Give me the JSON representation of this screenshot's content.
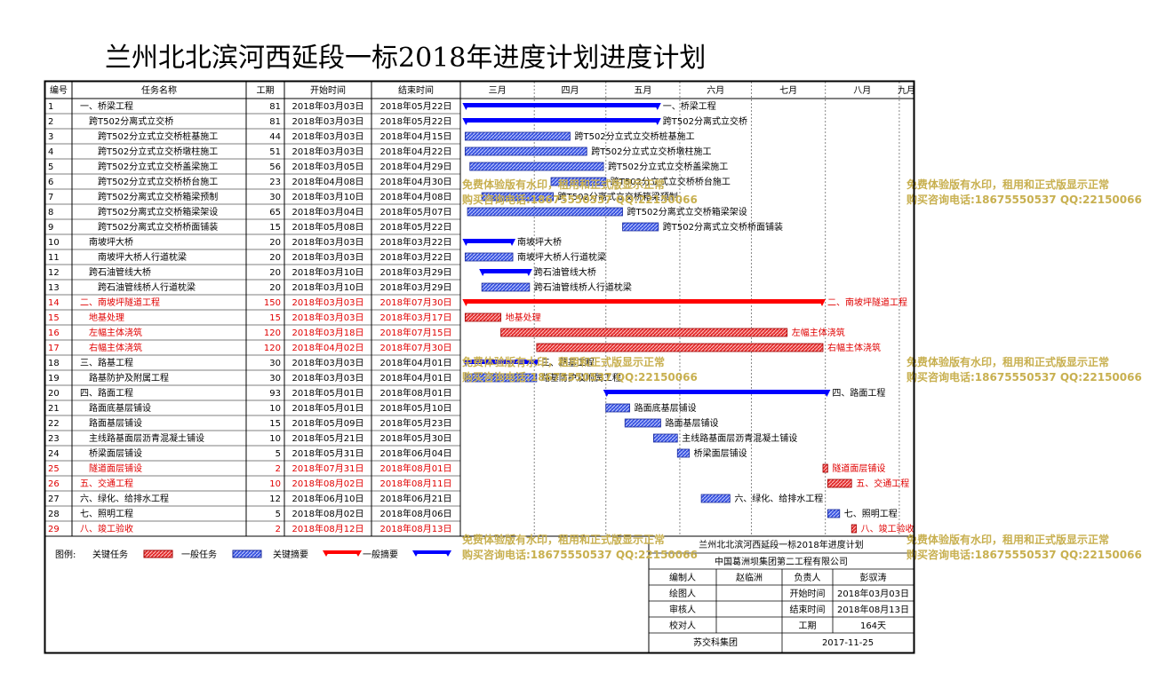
{
  "title": "兰州北北滨河西延段一标2018年进度计划进度计划",
  "header": {
    "id": "编号",
    "name": "任务名称",
    "duration": "工期",
    "start": "开始时间",
    "end": "结束时间",
    "months": [
      "三月",
      "四月",
      "五月",
      "六月",
      "七月",
      "八月",
      "九月"
    ]
  },
  "legend": {
    "label": "图例:",
    "items": [
      "关键任务",
      "一般任务",
      "关键摘要",
      "一般摘要"
    ]
  },
  "info": {
    "project": "兰州北北滨河西延段一标2018年进度计划",
    "company": "中国葛洲坝集团第二工程有限公司",
    "rows": [
      [
        "编制人",
        "赵临洲",
        "负责人",
        "彭驭涛"
      ],
      [
        "绘图人",
        "",
        "开始时间",
        "2018年03月03日"
      ],
      [
        "审核人",
        "",
        "结束时间",
        "2018年08月13日"
      ],
      [
        "校对人",
        "",
        "工期",
        "164天"
      ]
    ],
    "footer_left": "苏交科集团",
    "footer_right": "2017-11-25"
  },
  "watermarks": {
    "line1": "免费体验版有水印，租用和正式版显示正常",
    "line2": "购买咨询电话:18675550537 QQ:22150066"
  },
  "colors": {
    "critical": "#e00000",
    "normal": "#2b3fd6",
    "summary": "#0000ff",
    "critical_summary": "#ff0000"
  },
  "chart_data": {
    "type": "gantt",
    "timeline_start": "2018-03-01",
    "timeline_end": "2018-09-07",
    "tasks": [
      {
        "id": "1",
        "name": "一、桥梁工程",
        "duration": "81",
        "start": "2018年03月03日",
        "end": "2018年05月22日",
        "level": 0,
        "kind": "summary",
        "critical": false,
        "label": "一、桥梁工程"
      },
      {
        "id": "2",
        "name": "跨T502分离式立交桥",
        "duration": "81",
        "start": "2018年03月03日",
        "end": "2018年05月22日",
        "level": 1,
        "kind": "summary",
        "critical": false,
        "label": "跨T502分离式立交桥"
      },
      {
        "id": "3",
        "name": "跨T502分立式立交桥桩基施工",
        "duration": "44",
        "start": "2018年03月03日",
        "end": "2018年04月15日",
        "level": 2,
        "kind": "task",
        "critical": false,
        "label": "跨T502分立式立交桥桩基施工"
      },
      {
        "id": "4",
        "name": "跨T502分立式立交桥墩柱施工",
        "duration": "51",
        "start": "2018年03月03日",
        "end": "2018年04月22日",
        "level": 2,
        "kind": "task",
        "critical": false,
        "label": "跨T502分立式立交桥墩柱施工"
      },
      {
        "id": "5",
        "name": "跨T502分立式立交桥盖梁施工",
        "duration": "56",
        "start": "2018年03月05日",
        "end": "2018年04月29日",
        "level": 2,
        "kind": "task",
        "critical": false,
        "label": "跨T502分立式立交桥盖梁施工"
      },
      {
        "id": "6",
        "name": "跨T502分立式立交桥桥台施工",
        "duration": "23",
        "start": "2018年04月08日",
        "end": "2018年04月30日",
        "level": 2,
        "kind": "task",
        "critical": false,
        "label": "跨T502分立式立交桥桥台施工"
      },
      {
        "id": "7",
        "name": "跨T502分离式立交桥箱梁预制",
        "duration": "30",
        "start": "2018年03月10日",
        "end": "2018年04月08日",
        "level": 2,
        "kind": "task",
        "critical": false,
        "label": "跨T502分离式立交桥箱梁预制"
      },
      {
        "id": "8",
        "name": "跨T502分离式立交桥箱梁架设",
        "duration": "65",
        "start": "2018年03月04日",
        "end": "2018年05月07日",
        "level": 2,
        "kind": "task",
        "critical": false,
        "label": "跨T502分离式立交桥箱梁架设"
      },
      {
        "id": "9",
        "name": "跨T502分离式立交桥桥面铺装",
        "duration": "15",
        "start": "2018年05月08日",
        "end": "2018年05月22日",
        "level": 2,
        "kind": "task",
        "critical": false,
        "label": "跨T502分离式立交桥桥面铺装"
      },
      {
        "id": "10",
        "name": "南坡坪大桥",
        "duration": "20",
        "start": "2018年03月03日",
        "end": "2018年03月22日",
        "level": 1,
        "kind": "summary",
        "critical": false,
        "label": "南坡坪大桥"
      },
      {
        "id": "11",
        "name": "南坡坪大桥人行道枕梁",
        "duration": "20",
        "start": "2018年03月03日",
        "end": "2018年03月22日",
        "level": 2,
        "kind": "task",
        "critical": false,
        "label": "南坡坪大桥人行道枕梁"
      },
      {
        "id": "12",
        "name": "跨石油管线大桥",
        "duration": "20",
        "start": "2018年03月10日",
        "end": "2018年03月29日",
        "level": 1,
        "kind": "summary",
        "critical": false,
        "label": "跨石油管线大桥"
      },
      {
        "id": "13",
        "name": "跨石油管线桥人行道枕梁",
        "duration": "20",
        "start": "2018年03月10日",
        "end": "2018年03月29日",
        "level": 2,
        "kind": "task",
        "critical": false,
        "label": "跨石油管线桥人行道枕梁"
      },
      {
        "id": "14",
        "name": "二、南坡坪隧道工程",
        "duration": "150",
        "start": "2018年03月03日",
        "end": "2018年07月30日",
        "level": 0,
        "kind": "summary",
        "critical": true,
        "label": "二、南坡坪隧道工程"
      },
      {
        "id": "15",
        "name": "地基处理",
        "duration": "15",
        "start": "2018年03月03日",
        "end": "2018年03月17日",
        "level": 1,
        "kind": "task",
        "critical": true,
        "label": "地基处理"
      },
      {
        "id": "16",
        "name": "左幅主体浇筑",
        "duration": "120",
        "start": "2018年03月18日",
        "end": "2018年07月15日",
        "level": 1,
        "kind": "task",
        "critical": true,
        "label": "左幅主体浇筑"
      },
      {
        "id": "17",
        "name": "右幅主体浇筑",
        "duration": "120",
        "start": "2018年04月02日",
        "end": "2018年07月30日",
        "level": 1,
        "kind": "task",
        "critical": true,
        "label": "右幅主体浇筑"
      },
      {
        "id": "18",
        "name": "三、路基工程",
        "duration": "30",
        "start": "2018年03月03日",
        "end": "2018年04月01日",
        "level": 0,
        "kind": "summary",
        "critical": false,
        "label": "三、路基工程"
      },
      {
        "id": "19",
        "name": "路基防护及附属工程",
        "duration": "30",
        "start": "2018年03月03日",
        "end": "2018年04月01日",
        "level": 1,
        "kind": "task",
        "critical": false,
        "label": "路基防护及附属工程"
      },
      {
        "id": "20",
        "name": "四、路面工程",
        "duration": "93",
        "start": "2018年05月01日",
        "end": "2018年08月01日",
        "level": 0,
        "kind": "summary",
        "critical": false,
        "label": "四、路面工程"
      },
      {
        "id": "21",
        "name": "路面底基层铺设",
        "duration": "10",
        "start": "2018年05月01日",
        "end": "2018年05月10日",
        "level": 1,
        "kind": "task",
        "critical": false,
        "label": "路面底基层铺设"
      },
      {
        "id": "22",
        "name": "路面基层铺设",
        "duration": "15",
        "start": "2018年05月09日",
        "end": "2018年05月23日",
        "level": 1,
        "kind": "task",
        "critical": false,
        "label": "路面基层铺设"
      },
      {
        "id": "23",
        "name": "主线路基面层沥青混凝土铺设",
        "duration": "10",
        "start": "2018年05月21日",
        "end": "2018年05月30日",
        "level": 1,
        "kind": "task",
        "critical": false,
        "label": "主线路基面层沥青混凝土铺设"
      },
      {
        "id": "24",
        "name": "桥梁面层铺设",
        "duration": "5",
        "start": "2018年05月31日",
        "end": "2018年06月04日",
        "level": 1,
        "kind": "task",
        "critical": false,
        "label": "桥梁面层铺设"
      },
      {
        "id": "25",
        "name": "隧道面层铺设",
        "duration": "2",
        "start": "2018年07月31日",
        "end": "2018年08月01日",
        "level": 1,
        "kind": "task",
        "critical": true,
        "label": "隧道面层铺设"
      },
      {
        "id": "26",
        "name": "五、交通工程",
        "duration": "10",
        "start": "2018年08月02日",
        "end": "2018年08月11日",
        "level": 0,
        "kind": "task",
        "critical": true,
        "label": "五、交通工程"
      },
      {
        "id": "27",
        "name": "六、绿化、给排水工程",
        "duration": "12",
        "start": "2018年06月10日",
        "end": "2018年06月21日",
        "level": 0,
        "kind": "task",
        "critical": false,
        "label": "六、绿化、给排水工程"
      },
      {
        "id": "28",
        "name": "七、照明工程",
        "duration": "5",
        "start": "2018年08月02日",
        "end": "2018年08月06日",
        "level": 0,
        "kind": "task",
        "critical": false,
        "label": "七、照明工程"
      },
      {
        "id": "29",
        "name": "八、竣工验收",
        "duration": "2",
        "start": "2018年08月12日",
        "end": "2018年08月13日",
        "level": 0,
        "kind": "task",
        "critical": true,
        "label": "八、竣工验收"
      }
    ]
  }
}
